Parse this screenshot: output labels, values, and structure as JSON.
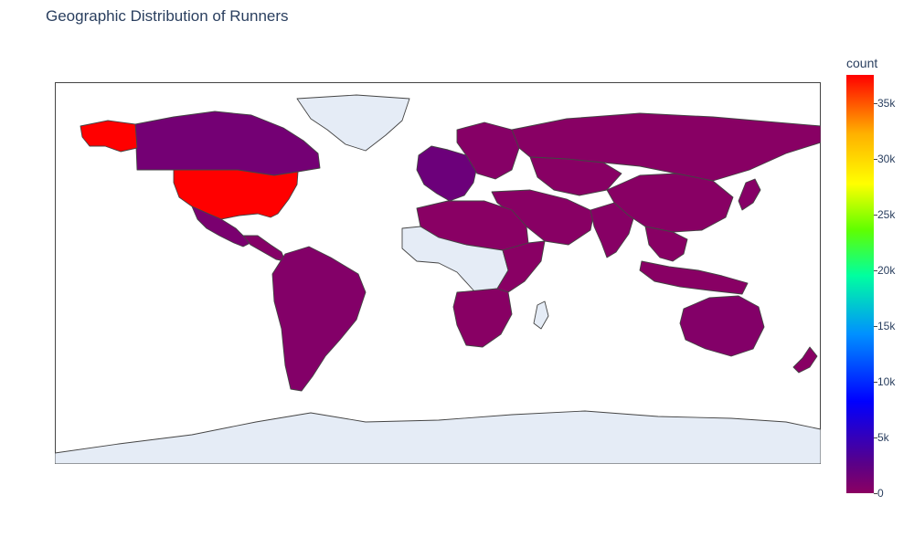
{
  "chart_data": {
    "type": "choropleth",
    "title": "Geographic Distribution of Runners",
    "colorbar": {
      "title": "count",
      "range": [
        0,
        37500
      ],
      "ticks": [
        "0",
        "5k",
        "10k",
        "15k",
        "20k",
        "25k",
        "30k",
        "35k"
      ],
      "tick_values": [
        0,
        5000,
        10000,
        15000,
        20000,
        25000,
        30000,
        35000
      ],
      "colorscale": [
        "#8b0062",
        "#5a0088",
        "#0000ff",
        "#0090ff",
        "#00ffa0",
        "#60ff00",
        "#ffff00",
        "#ffb000",
        "#ff0000"
      ]
    },
    "no_data_color": "#e5ecf6",
    "regions": [
      {
        "name": "United States",
        "count": 37500
      },
      {
        "name": "Canada",
        "count": 2200
      },
      {
        "name": "Mexico",
        "count": 1600
      },
      {
        "name": "Central America",
        "count": 600
      },
      {
        "name": "South America",
        "count": 800
      },
      {
        "name": "Western Europe",
        "count": 3000
      },
      {
        "name": "Eastern Europe",
        "count": 500
      },
      {
        "name": "Russia",
        "count": 300
      },
      {
        "name": "Middle East",
        "count": 300
      },
      {
        "name": "Central Asia",
        "count": 300
      },
      {
        "name": "India",
        "count": 400
      },
      {
        "name": "China",
        "count": 300
      },
      {
        "name": "Japan",
        "count": 500
      },
      {
        "name": "Southeast Asia",
        "count": 300
      },
      {
        "name": "Indonesia",
        "count": 300
      },
      {
        "name": "Australia",
        "count": 800
      },
      {
        "name": "New Zealand",
        "count": 300
      },
      {
        "name": "North Africa",
        "count": 200
      },
      {
        "name": "Southern Africa",
        "count": 300
      },
      {
        "name": "East Africa",
        "count": 200
      },
      {
        "name": "Greenland",
        "count": null
      },
      {
        "name": "Central Africa",
        "count": null
      },
      {
        "name": "Antarctica",
        "count": null
      }
    ]
  }
}
